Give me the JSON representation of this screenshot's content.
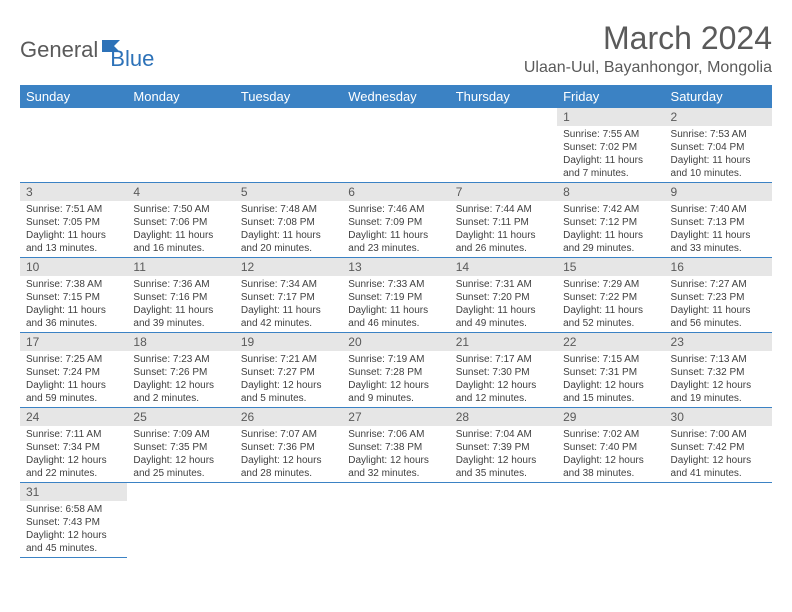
{
  "logo": {
    "general": "General",
    "blue": "Blue"
  },
  "title": "March 2024",
  "location": "Ulaan-Uul, Bayanhongor, Mongolia",
  "colors": {
    "header_bg": "#3b82c4",
    "header_text": "#ffffff",
    "daynum_bg": "#e6e6e6",
    "text": "#5a5a5a",
    "cell_border": "#3b82c4"
  },
  "weekdays": [
    "Sunday",
    "Monday",
    "Tuesday",
    "Wednesday",
    "Thursday",
    "Friday",
    "Saturday"
  ],
  "weeks": [
    [
      null,
      null,
      null,
      null,
      null,
      {
        "n": "1",
        "sr": "7:55 AM",
        "ss": "7:02 PM",
        "dl": "11 hours and 7 minutes."
      },
      {
        "n": "2",
        "sr": "7:53 AM",
        "ss": "7:04 PM",
        "dl": "11 hours and 10 minutes."
      }
    ],
    [
      {
        "n": "3",
        "sr": "7:51 AM",
        "ss": "7:05 PM",
        "dl": "11 hours and 13 minutes."
      },
      {
        "n": "4",
        "sr": "7:50 AM",
        "ss": "7:06 PM",
        "dl": "11 hours and 16 minutes."
      },
      {
        "n": "5",
        "sr": "7:48 AM",
        "ss": "7:08 PM",
        "dl": "11 hours and 20 minutes."
      },
      {
        "n": "6",
        "sr": "7:46 AM",
        "ss": "7:09 PM",
        "dl": "11 hours and 23 minutes."
      },
      {
        "n": "7",
        "sr": "7:44 AM",
        "ss": "7:11 PM",
        "dl": "11 hours and 26 minutes."
      },
      {
        "n": "8",
        "sr": "7:42 AM",
        "ss": "7:12 PM",
        "dl": "11 hours and 29 minutes."
      },
      {
        "n": "9",
        "sr": "7:40 AM",
        "ss": "7:13 PM",
        "dl": "11 hours and 33 minutes."
      }
    ],
    [
      {
        "n": "10",
        "sr": "7:38 AM",
        "ss": "7:15 PM",
        "dl": "11 hours and 36 minutes."
      },
      {
        "n": "11",
        "sr": "7:36 AM",
        "ss": "7:16 PM",
        "dl": "11 hours and 39 minutes."
      },
      {
        "n": "12",
        "sr": "7:34 AM",
        "ss": "7:17 PM",
        "dl": "11 hours and 42 minutes."
      },
      {
        "n": "13",
        "sr": "7:33 AM",
        "ss": "7:19 PM",
        "dl": "11 hours and 46 minutes."
      },
      {
        "n": "14",
        "sr": "7:31 AM",
        "ss": "7:20 PM",
        "dl": "11 hours and 49 minutes."
      },
      {
        "n": "15",
        "sr": "7:29 AM",
        "ss": "7:22 PM",
        "dl": "11 hours and 52 minutes."
      },
      {
        "n": "16",
        "sr": "7:27 AM",
        "ss": "7:23 PM",
        "dl": "11 hours and 56 minutes."
      }
    ],
    [
      {
        "n": "17",
        "sr": "7:25 AM",
        "ss": "7:24 PM",
        "dl": "11 hours and 59 minutes."
      },
      {
        "n": "18",
        "sr": "7:23 AM",
        "ss": "7:26 PM",
        "dl": "12 hours and 2 minutes."
      },
      {
        "n": "19",
        "sr": "7:21 AM",
        "ss": "7:27 PM",
        "dl": "12 hours and 5 minutes."
      },
      {
        "n": "20",
        "sr": "7:19 AM",
        "ss": "7:28 PM",
        "dl": "12 hours and 9 minutes."
      },
      {
        "n": "21",
        "sr": "7:17 AM",
        "ss": "7:30 PM",
        "dl": "12 hours and 12 minutes."
      },
      {
        "n": "22",
        "sr": "7:15 AM",
        "ss": "7:31 PM",
        "dl": "12 hours and 15 minutes."
      },
      {
        "n": "23",
        "sr": "7:13 AM",
        "ss": "7:32 PM",
        "dl": "12 hours and 19 minutes."
      }
    ],
    [
      {
        "n": "24",
        "sr": "7:11 AM",
        "ss": "7:34 PM",
        "dl": "12 hours and 22 minutes."
      },
      {
        "n": "25",
        "sr": "7:09 AM",
        "ss": "7:35 PM",
        "dl": "12 hours and 25 minutes."
      },
      {
        "n": "26",
        "sr": "7:07 AM",
        "ss": "7:36 PM",
        "dl": "12 hours and 28 minutes."
      },
      {
        "n": "27",
        "sr": "7:06 AM",
        "ss": "7:38 PM",
        "dl": "12 hours and 32 minutes."
      },
      {
        "n": "28",
        "sr": "7:04 AM",
        "ss": "7:39 PM",
        "dl": "12 hours and 35 minutes."
      },
      {
        "n": "29",
        "sr": "7:02 AM",
        "ss": "7:40 PM",
        "dl": "12 hours and 38 minutes."
      },
      {
        "n": "30",
        "sr": "7:00 AM",
        "ss": "7:42 PM",
        "dl": "12 hours and 41 minutes."
      }
    ],
    [
      {
        "n": "31",
        "sr": "6:58 AM",
        "ss": "7:43 PM",
        "dl": "12 hours and 45 minutes."
      },
      null,
      null,
      null,
      null,
      null,
      null
    ]
  ],
  "labels": {
    "sunrise": "Sunrise:",
    "sunset": "Sunset:",
    "daylight": "Daylight:"
  }
}
